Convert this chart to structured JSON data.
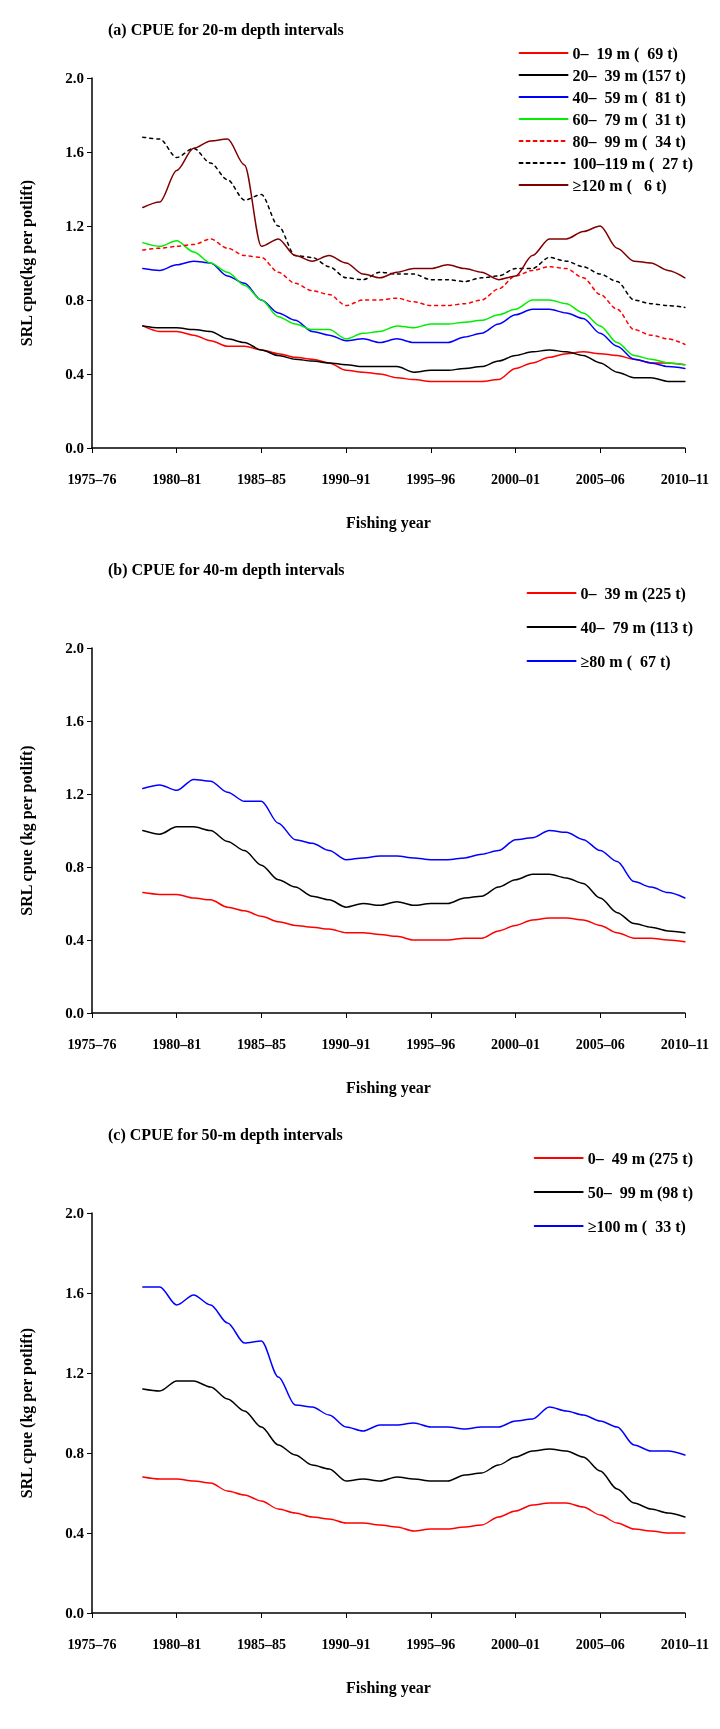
{
  "chart_data": [
    {
      "type": "line",
      "title": "(a) CPUE for 20-m depth intervals",
      "xlabel": "Fishing year",
      "ylabel": "SRL cpue(kg per potlift)",
      "categories": [
        "1975–76",
        null,
        null,
        null,
        null,
        "1980–81",
        null,
        null,
        null,
        null,
        "1985–85",
        null,
        null,
        null,
        null,
        "1990–91",
        null,
        null,
        null,
        null,
        "1995–96",
        null,
        null,
        null,
        null,
        "2000–01",
        null,
        null,
        null,
        null,
        "2005–06",
        null,
        null,
        null,
        null,
        "2010–11"
      ],
      "ylim": [
        0,
        2
      ],
      "yticks": [
        {
          "value": 0,
          "label": "0.0"
        },
        {
          "value": 0.4,
          "label": "0.4"
        },
        {
          "value": 0.8,
          "label": "0.8"
        },
        {
          "value": 1.2,
          "label": "1.2"
        },
        {
          "value": 1.6,
          "label": "1.6"
        },
        {
          "value": 2,
          "label": "2.0"
        }
      ],
      "grid": false,
      "legend": "top right",
      "marker": "none",
      "line_style": "solid",
      "series": [
        {
          "name": "0–  19 m (  69 t)",
          "color": "#ff0000",
          "values": [
            null,
            null,
            null,
            0.66,
            0.63,
            0.63,
            0.61,
            0.58,
            0.55,
            0.55,
            0.53,
            0.51,
            0.49,
            0.48,
            0.46,
            0.42,
            0.41,
            0.4,
            0.38,
            0.37,
            0.36,
            0.36,
            0.36,
            0.36,
            0.37,
            0.43,
            0.46,
            0.49,
            0.51,
            0.52,
            0.51,
            0.5,
            0.48,
            0.46,
            0.46,
            0.45
          ]
        },
        {
          "name": "20–  39 m (157 t)",
          "color": "#000000",
          "values": [
            null,
            null,
            null,
            0.66,
            0.65,
            0.65,
            0.64,
            0.63,
            0.59,
            0.57,
            0.53,
            0.5,
            0.48,
            0.47,
            0.46,
            0.45,
            0.44,
            0.44,
            0.44,
            0.41,
            0.42,
            0.42,
            0.43,
            0.44,
            0.47,
            0.5,
            0.52,
            0.53,
            0.52,
            0.5,
            0.46,
            0.41,
            0.38,
            0.38,
            0.36,
            0.36
          ]
        },
        {
          "name": "40–  59 m (  81 t)",
          "color": "#0000ff",
          "values": [
            null,
            null,
            null,
            0.97,
            0.96,
            0.99,
            1.01,
            1.0,
            0.93,
            0.89,
            0.8,
            0.73,
            0.69,
            0.63,
            0.61,
            0.58,
            0.59,
            0.57,
            0.59,
            0.57,
            0.57,
            0.57,
            0.6,
            0.62,
            0.67,
            0.72,
            0.75,
            0.75,
            0.73,
            0.7,
            0.62,
            0.55,
            0.48,
            0.46,
            0.44,
            0.43
          ]
        },
        {
          "name": "60–  79 m (  31 t)",
          "color": "#00ee00",
          "values": [
            null,
            null,
            null,
            1.11,
            1.09,
            1.12,
            1.06,
            1.0,
            0.95,
            0.88,
            0.8,
            0.71,
            0.67,
            0.64,
            0.64,
            0.59,
            0.62,
            0.63,
            0.66,
            0.65,
            0.67,
            0.67,
            0.68,
            0.69,
            0.72,
            0.75,
            0.8,
            0.8,
            0.78,
            0.73,
            0.66,
            0.57,
            0.5,
            0.48,
            0.46,
            0.45
          ]
        },
        {
          "name": "80–  99 m (  34 t)",
          "color": "#ff0000",
          "line_style": "dotted",
          "values": [
            null,
            null,
            null,
            1.07,
            1.08,
            1.09,
            1.1,
            1.13,
            1.08,
            1.04,
            1.03,
            0.95,
            0.89,
            0.85,
            0.83,
            0.77,
            0.8,
            0.8,
            0.81,
            0.79,
            0.77,
            0.77,
            0.78,
            0.8,
            0.86,
            0.93,
            0.96,
            0.98,
            0.97,
            0.92,
            0.83,
            0.75,
            0.64,
            0.61,
            0.59,
            0.56
          ]
        },
        {
          "name": "100–119 m (  27 t)",
          "color": "#000000",
          "line_style": "dotted",
          "values": [
            null,
            null,
            null,
            1.68,
            1.67,
            1.57,
            1.62,
            1.54,
            1.45,
            1.34,
            1.37,
            1.2,
            1.04,
            1.03,
            0.98,
            0.92,
            0.91,
            0.95,
            0.94,
            0.94,
            0.91,
            0.91,
            0.9,
            0.92,
            0.93,
            0.97,
            0.97,
            1.03,
            1.01,
            0.98,
            0.94,
            0.9,
            0.8,
            0.78,
            0.77,
            0.76
          ]
        },
        {
          "name": "≥120 m (   6 t)",
          "color": "#800000",
          "values": [
            null,
            null,
            null,
            1.3,
            1.33,
            1.5,
            1.62,
            1.66,
            1.67,
            1.53,
            1.09,
            1.13,
            1.04,
            1.01,
            1.04,
            1.0,
            0.94,
            0.92,
            0.95,
            0.97,
            0.97,
            0.99,
            0.97,
            0.95,
            0.91,
            0.93,
            1.04,
            1.13,
            1.13,
            1.17,
            1.2,
            1.08,
            1.01,
            1.0,
            0.96,
            0.92
          ]
        }
      ]
    },
    {
      "type": "line",
      "title": "(b) CPUE for 40-m depth intervals",
      "xlabel": "Fishing year",
      "ylabel": "SRL cpue (kg per potlift)",
      "categories": [
        "1975–76",
        null,
        null,
        null,
        null,
        "1980–81",
        null,
        null,
        null,
        null,
        "1985–85",
        null,
        null,
        null,
        null,
        "1990–91",
        null,
        null,
        null,
        null,
        "1995–96",
        null,
        null,
        null,
        null,
        "2000–01",
        null,
        null,
        null,
        null,
        "2005–06",
        null,
        null,
        null,
        null,
        "2010–11"
      ],
      "ylim": [
        0,
        2
      ],
      "yticks": [
        {
          "value": 0,
          "label": "0.0"
        },
        {
          "value": 0.4,
          "label": "0.4"
        },
        {
          "value": 0.8,
          "label": "0.8"
        },
        {
          "value": 1.2,
          "label": "1.2"
        },
        {
          "value": 1.6,
          "label": "1.6"
        },
        {
          "value": 2,
          "label": "2.0"
        }
      ],
      "grid": false,
      "legend": "top right",
      "marker": "none",
      "line_style": "solid",
      "series": [
        {
          "name": "0–  39 m (225 t)",
          "color": "#ff0000",
          "values": [
            null,
            null,
            null,
            0.66,
            0.65,
            0.65,
            0.63,
            0.62,
            0.58,
            0.56,
            0.53,
            0.5,
            0.48,
            0.47,
            0.46,
            0.44,
            0.44,
            0.43,
            0.42,
            0.4,
            0.4,
            0.4,
            0.41,
            0.41,
            0.45,
            0.48,
            0.51,
            0.52,
            0.52,
            0.51,
            0.48,
            0.44,
            0.41,
            0.41,
            0.4,
            0.39
          ]
        },
        {
          "name": "40–  79 m (113 t)",
          "color": "#000000",
          "values": [
            null,
            null,
            null,
            1.0,
            0.98,
            1.02,
            1.02,
            1.0,
            0.94,
            0.89,
            0.81,
            0.73,
            0.69,
            0.64,
            0.62,
            0.58,
            0.6,
            0.59,
            0.61,
            0.59,
            0.6,
            0.6,
            0.63,
            0.64,
            0.69,
            0.73,
            0.76,
            0.76,
            0.74,
            0.71,
            0.63,
            0.55,
            0.49,
            0.47,
            0.45,
            0.44
          ]
        },
        {
          "name": "≥80 m (  67 t)",
          "color": "#0000ff",
          "values": [
            null,
            null,
            null,
            1.23,
            1.25,
            1.22,
            1.28,
            1.27,
            1.21,
            1.16,
            1.16,
            1.04,
            0.95,
            0.93,
            0.89,
            0.84,
            0.85,
            0.86,
            0.86,
            0.85,
            0.84,
            0.84,
            0.85,
            0.87,
            0.89,
            0.95,
            0.96,
            1.0,
            0.99,
            0.95,
            0.89,
            0.83,
            0.72,
            0.69,
            0.66,
            0.63
          ]
        }
      ]
    },
    {
      "type": "line",
      "title": "(c) CPUE for 50-m depth intervals",
      "xlabel": "Fishing year",
      "ylabel": "SRL cpue (kg per potlift)",
      "categories": [
        "1975–76",
        null,
        null,
        null,
        null,
        "1980–81",
        null,
        null,
        null,
        null,
        "1985–85",
        null,
        null,
        null,
        null,
        "1990–91",
        null,
        null,
        null,
        null,
        "1995–96",
        null,
        null,
        null,
        null,
        "2000–01",
        null,
        null,
        null,
        null,
        "2005–06",
        null,
        null,
        null,
        null,
        "2010–11"
      ],
      "ylim": [
        0,
        2
      ],
      "yticks": [
        {
          "value": 0,
          "label": "0.0"
        },
        {
          "value": 0.4,
          "label": "0.4"
        },
        {
          "value": 0.8,
          "label": "0.8"
        },
        {
          "value": 1.2,
          "label": "1.2"
        },
        {
          "value": 1.6,
          "label": "1.6"
        },
        {
          "value": 2,
          "label": "2.0"
        }
      ],
      "grid": false,
      "legend": "top right",
      "marker": "none",
      "line_style": "solid",
      "series": [
        {
          "name": "0–  49 m (275 t)",
          "color": "#ff0000",
          "values": [
            null,
            null,
            null,
            0.68,
            0.67,
            0.67,
            0.66,
            0.65,
            0.61,
            0.59,
            0.56,
            0.52,
            0.5,
            0.48,
            0.47,
            0.45,
            0.45,
            0.44,
            0.43,
            0.41,
            0.42,
            0.42,
            0.43,
            0.44,
            0.48,
            0.51,
            0.54,
            0.55,
            0.55,
            0.53,
            0.49,
            0.45,
            0.42,
            0.41,
            0.4,
            0.4
          ]
        },
        {
          "name": "50–  99 m (98 t)",
          "color": "#000000",
          "values": [
            null,
            null,
            null,
            1.12,
            1.11,
            1.16,
            1.16,
            1.13,
            1.07,
            1.01,
            0.93,
            0.84,
            0.79,
            0.74,
            0.72,
            0.66,
            0.67,
            0.66,
            0.68,
            0.67,
            0.66,
            0.66,
            0.69,
            0.7,
            0.74,
            0.78,
            0.81,
            0.82,
            0.81,
            0.78,
            0.71,
            0.62,
            0.55,
            0.52,
            0.5,
            0.48
          ]
        },
        {
          "name": "≥100 m (  33 t)",
          "color": "#0000ff",
          "values": [
            null,
            null,
            null,
            1.63,
            1.63,
            1.54,
            1.59,
            1.54,
            1.45,
            1.35,
            1.36,
            1.18,
            1.04,
            1.03,
            0.99,
            0.93,
            0.91,
            0.94,
            0.94,
            0.95,
            0.93,
            0.93,
            0.92,
            0.93,
            0.93,
            0.96,
            0.97,
            1.03,
            1.01,
            0.99,
            0.96,
            0.93,
            0.84,
            0.81,
            0.81,
            0.79
          ]
        }
      ]
    }
  ]
}
